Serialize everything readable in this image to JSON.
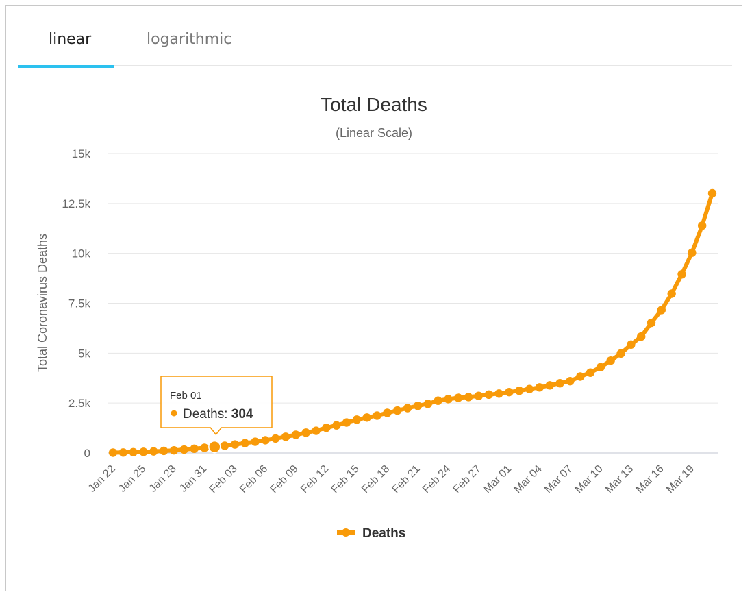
{
  "tabs": [
    {
      "label": "linear",
      "active": true
    },
    {
      "label": "logarithmic",
      "active": false
    }
  ],
  "colors": {
    "series": "#f89a09",
    "accent_tab": "#2cc1ef",
    "grid": "#e6e6e6"
  },
  "tooltip": {
    "date": "Feb 01",
    "series": "Deaths",
    "value": "304"
  },
  "chart_data": {
    "type": "line",
    "title": "Total Deaths",
    "subtitle": "(Linear Scale)",
    "ylabel": "Total Coronavirus Deaths",
    "xlabel": "",
    "ylim": [
      0,
      15000
    ],
    "yticks": [
      0,
      2500,
      5000,
      7500,
      10000,
      12500,
      15000
    ],
    "ytick_labels": [
      "0",
      "2.5k",
      "5k",
      "7.5k",
      "10k",
      "12.5k",
      "15k"
    ],
    "grid": true,
    "legend": "bottom-center",
    "x_tick_labels": [
      "Jan 22",
      "Jan 25",
      "Jan 28",
      "Jan 31",
      "Feb 03",
      "Feb 06",
      "Feb 09",
      "Feb 12",
      "Feb 15",
      "Feb 18",
      "Feb 21",
      "Feb 24",
      "Feb 27",
      "Mar 01",
      "Mar 04",
      "Mar 07",
      "Mar 10",
      "Mar 13",
      "Mar 16",
      "Mar 19"
    ],
    "series": [
      {
        "name": "Deaths",
        "x": [
          "Jan 22",
          "Jan 23",
          "Jan 24",
          "Jan 25",
          "Jan 26",
          "Jan 27",
          "Jan 28",
          "Jan 29",
          "Jan 30",
          "Jan 31",
          "Feb 01",
          "Feb 02",
          "Feb 03",
          "Feb 04",
          "Feb 05",
          "Feb 06",
          "Feb 07",
          "Feb 08",
          "Feb 09",
          "Feb 10",
          "Feb 11",
          "Feb 12",
          "Feb 13",
          "Feb 14",
          "Feb 15",
          "Feb 16",
          "Feb 17",
          "Feb 18",
          "Feb 19",
          "Feb 20",
          "Feb 21",
          "Feb 22",
          "Feb 23",
          "Feb 24",
          "Feb 25",
          "Feb 26",
          "Feb 27",
          "Feb 28",
          "Feb 29",
          "Mar 01",
          "Mar 02",
          "Mar 03",
          "Mar 04",
          "Mar 05",
          "Mar 06",
          "Mar 07",
          "Mar 08",
          "Mar 09",
          "Mar 10",
          "Mar 11",
          "Mar 12",
          "Mar 13",
          "Mar 14",
          "Mar 15",
          "Mar 16",
          "Mar 17",
          "Mar 18",
          "Mar 19",
          "Mar 20",
          "Mar 21"
        ],
        "values": [
          17,
          25,
          41,
          56,
          80,
          106,
          132,
          170,
          213,
          259,
          304,
          362,
          426,
          492,
          565,
          638,
          724,
          813,
          910,
          1018,
          1115,
          1261,
          1383,
          1526,
          1669,
          1775,
          1873,
          2009,
          2126,
          2247,
          2360,
          2460,
          2618,
          2699,
          2763,
          2800,
          2858,
          2923,
          2977,
          3050,
          3117,
          3202,
          3285,
          3387,
          3494,
          3599,
          3827,
          4025,
          4296,
          4628,
          4981,
          5428,
          5833,
          6520,
          7160,
          7979,
          8952,
          10030,
          11386,
          13011
        ]
      }
    ]
  }
}
